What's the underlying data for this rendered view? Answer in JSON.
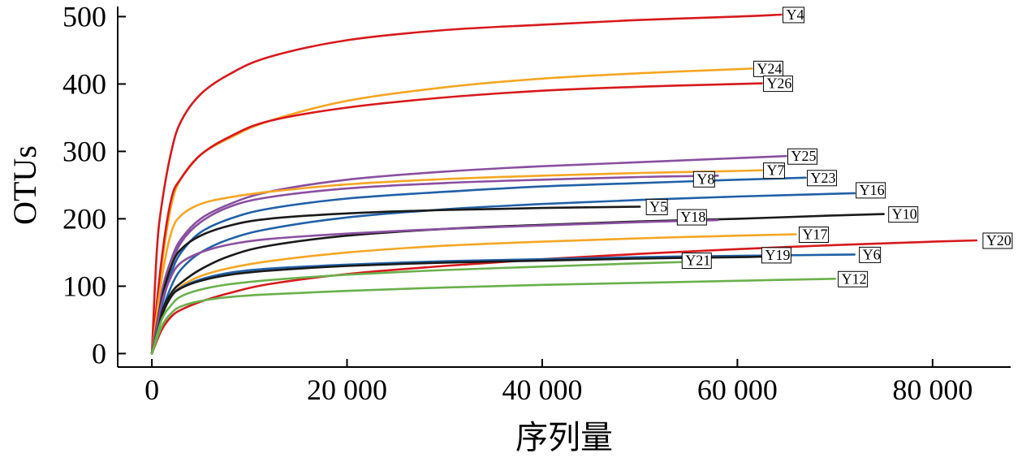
{
  "chart_data": {
    "type": "line",
    "xlabel": "序列量",
    "ylabel": "OTUs",
    "xlim": [
      -3500,
      88000
    ],
    "ylim": [
      -20,
      515
    ],
    "xticks": [
      0,
      20000,
      40000,
      60000,
      80000
    ],
    "xtick_labels": [
      "0",
      "20 000",
      "40 000",
      "60 000",
      "80 000"
    ],
    "yticks": [
      0,
      100,
      200,
      300,
      400,
      500
    ],
    "ytick_labels": [
      "0",
      "100",
      "200",
      "300",
      "400",
      "500"
    ],
    "grid": false,
    "legend": "inline labels at line ends",
    "series": [
      {
        "name": "Y4",
        "color": "#d7191c",
        "x": [
          0,
          500,
          1000,
          2000,
          3000,
          5000,
          8000,
          12000,
          20000,
          30000,
          40000,
          50000,
          60000,
          64500
        ],
        "y": [
          0,
          150,
          220,
          300,
          345,
          385,
          415,
          440,
          465,
          480,
          488,
          495,
          500,
          503
        ]
      },
      {
        "name": "Y24",
        "color": "#f5a623",
        "x": [
          0,
          1000,
          2000,
          3000,
          5000,
          8000,
          12000,
          20000,
          30000,
          40000,
          50000,
          60000,
          61500
        ],
        "y": [
          0,
          130,
          220,
          260,
          295,
          320,
          345,
          375,
          395,
          408,
          416,
          422,
          423
        ]
      },
      {
        "name": "Y26",
        "color": "#d7191c",
        "x": [
          0,
          1000,
          2000,
          3000,
          5000,
          8000,
          12000,
          20000,
          30000,
          40000,
          50000,
          60000,
          62500
        ],
        "y": [
          0,
          140,
          230,
          260,
          295,
          322,
          345,
          365,
          380,
          390,
          396,
          400,
          401
        ]
      },
      {
        "name": "Y25",
        "color": "#8a4fa0",
        "x": [
          0,
          1000,
          2000,
          3000,
          5000,
          8000,
          12000,
          20000,
          30000,
          40000,
          50000,
          60000,
          65000
        ],
        "y": [
          0,
          90,
          140,
          170,
          200,
          222,
          240,
          258,
          270,
          278,
          284,
          290,
          293
        ]
      },
      {
        "name": "Y7",
        "color": "#f5a623",
        "x": [
          0,
          1000,
          2000,
          3000,
          5000,
          8000,
          12000,
          20000,
          30000,
          40000,
          50000,
          60000,
          62500
        ],
        "y": [
          0,
          110,
          180,
          205,
          222,
          232,
          240,
          251,
          259,
          264,
          268,
          271,
          272
        ]
      },
      {
        "name": "Y8",
        "color": "#8a4fa0",
        "x": [
          0,
          1000,
          2000,
          3000,
          5000,
          8000,
          12000,
          20000,
          30000,
          40000,
          50000,
          58000
        ],
        "y": [
          0,
          80,
          130,
          165,
          195,
          218,
          232,
          245,
          253,
          258,
          262,
          264
        ]
      },
      {
        "name": "Y23",
        "color": "#2160a8",
        "x": [
          0,
          1000,
          2000,
          3000,
          5000,
          8000,
          12000,
          20000,
          30000,
          40000,
          50000,
          60000,
          67000
        ],
        "y": [
          0,
          70,
          120,
          150,
          180,
          200,
          215,
          230,
          240,
          248,
          253,
          258,
          261
        ]
      },
      {
        "name": "Y16",
        "color": "#2160a8",
        "x": [
          0,
          1000,
          2000,
          3000,
          5000,
          8000,
          12000,
          20000,
          30000,
          40000,
          50000,
          60000,
          72000
        ],
        "y": [
          0,
          60,
          100,
          125,
          150,
          170,
          185,
          202,
          214,
          222,
          228,
          233,
          238
        ]
      },
      {
        "name": "Y5",
        "color": "#1a1a1a",
        "x": [
          0,
          1000,
          2000,
          3000,
          5000,
          8000,
          12000,
          20000,
          30000,
          40000,
          50000
        ],
        "y": [
          0,
          80,
          130,
          155,
          175,
          190,
          200,
          208,
          213,
          216,
          218
        ]
      },
      {
        "name": "Y10",
        "color": "#1a1a1a",
        "x": [
          0,
          1000,
          2000,
          3000,
          5000,
          8000,
          12000,
          20000,
          30000,
          40000,
          50000,
          60000,
          70000,
          75000
        ],
        "y": [
          0,
          60,
          90,
          105,
          125,
          145,
          160,
          175,
          185,
          191,
          196,
          200,
          205,
          207
        ]
      },
      {
        "name": "Y18",
        "color": "#8a4fa0",
        "x": [
          0,
          1000,
          2000,
          3000,
          5000,
          8000,
          12000,
          20000,
          30000,
          40000,
          50000,
          58000
        ],
        "y": [
          0,
          75,
          115,
          135,
          150,
          162,
          170,
          178,
          185,
          190,
          195,
          198
        ]
      },
      {
        "name": "Y17",
        "color": "#f5a623",
        "x": [
          0,
          1000,
          2000,
          3000,
          5000,
          8000,
          12000,
          20000,
          30000,
          40000,
          50000,
          60000,
          66000
        ],
        "y": [
          0,
          55,
          85,
          100,
          115,
          127,
          137,
          150,
          160,
          166,
          171,
          175,
          177
        ]
      },
      {
        "name": "Y20",
        "color": "#d7191c",
        "x": [
          0,
          1000,
          2000,
          3000,
          5000,
          8000,
          12000,
          20000,
          30000,
          40000,
          50000,
          60000,
          70000,
          80000,
          84500
        ],
        "y": [
          0,
          35,
          55,
          65,
          77,
          90,
          103,
          118,
          130,
          140,
          148,
          155,
          161,
          166,
          168
        ]
      },
      {
        "name": "Y6",
        "color": "#2160a8",
        "x": [
          0,
          1000,
          2000,
          3000,
          5000,
          8000,
          12000,
          20000,
          30000,
          40000,
          50000,
          60000,
          72000
        ],
        "y": [
          0,
          55,
          85,
          98,
          110,
          120,
          126,
          132,
          137,
          140,
          143,
          145,
          147
        ]
      },
      {
        "name": "Y19",
        "color": "#1a1a1a",
        "x": [
          0,
          1000,
          2000,
          3000,
          5000,
          8000,
          12000,
          20000,
          30000,
          40000,
          50000,
          60000,
          63000
        ],
        "y": [
          0,
          55,
          85,
          97,
          108,
          117,
          123,
          130,
          135,
          138,
          141,
          143,
          144
        ]
      },
      {
        "name": "Y21",
        "color": "#6ab04c",
        "x": [
          0,
          1000,
          2000,
          3000,
          5000,
          8000,
          12000,
          20000,
          30000,
          40000,
          50000,
          55000
        ],
        "y": [
          0,
          50,
          72,
          85,
          95,
          103,
          109,
          117,
          124,
          129,
          134,
          136
        ]
      },
      {
        "name": "Y12",
        "color": "#6ab04c",
        "x": [
          0,
          1000,
          2000,
          3000,
          5000,
          8000,
          12000,
          20000,
          30000,
          40000,
          50000,
          60000,
          70000
        ],
        "y": [
          0,
          40,
          60,
          70,
          78,
          84,
          88,
          93,
          98,
          102,
          105,
          108,
          111
        ]
      }
    ]
  }
}
